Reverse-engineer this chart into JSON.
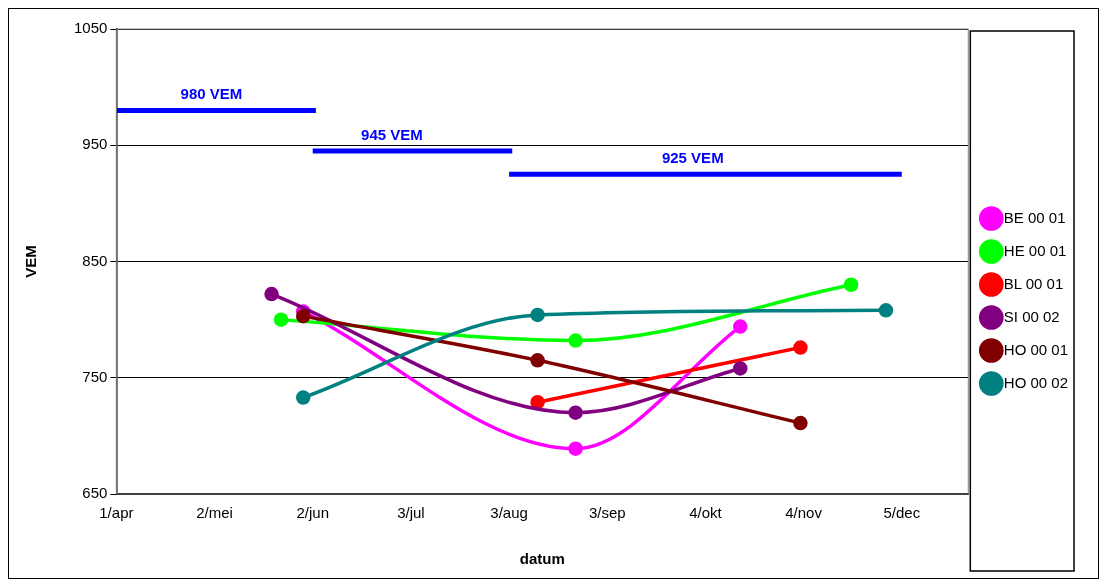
{
  "chart_data": {
    "type": "line",
    "xlabel": "datum",
    "ylabel": "VEM",
    "xlim": [
      "--04-01",
      "--12-26"
    ],
    "xticks": [
      {
        "value": "--04-01",
        "label": "1/apr"
      },
      {
        "value": "--05-02",
        "label": "2/mei"
      },
      {
        "value": "--06-02",
        "label": "2/jun"
      },
      {
        "value": "--07-03",
        "label": "3/jul"
      },
      {
        "value": "--08-03",
        "label": "3/aug"
      },
      {
        "value": "--09-03",
        "label": "3/sep"
      },
      {
        "value": "--10-04",
        "label": "4/okt"
      },
      {
        "value": "--11-04",
        "label": "4/nov"
      },
      {
        "value": "--12-05",
        "label": "5/dec"
      }
    ],
    "ylim": [
      650,
      1050
    ],
    "yticks": [
      650,
      750,
      850,
      950,
      1050
    ],
    "grid": "y",
    "legend": "right",
    "marker": "circle",
    "line_style": "solid",
    "series": [
      {
        "name": "BE 00 01",
        "color": "#ff00ff",
        "x": [
          "--05-30",
          "--08-24",
          "--10-15"
        ],
        "values": [
          807,
          689,
          794
        ]
      },
      {
        "name": "HE 00 01",
        "color": "#00ff00",
        "x": [
          "--05-23",
          "--08-24",
          "--11-19"
        ],
        "values": [
          800,
          782,
          830
        ]
      },
      {
        "name": "BL 00 01",
        "color": "#ff0000",
        "x": [
          "--08-12",
          "--11-03"
        ],
        "values": [
          729,
          776
        ]
      },
      {
        "name": "SI 00 02",
        "color": "#800080",
        "x": [
          "--05-20",
          "--08-24",
          "--10-15"
        ],
        "values": [
          822,
          720,
          758
        ]
      },
      {
        "name": "HO 00 01",
        "color": "#800000",
        "x": [
          "--05-30",
          "--08-12",
          "--11-03"
        ],
        "values": [
          803,
          765,
          711
        ]
      },
      {
        "name": "HO 00 02",
        "color": "#008080",
        "x": [
          "--05-30",
          "--08-12",
          "--11-30"
        ],
        "values": [
          733,
          804,
          808
        ]
      },
      {
        "color": "#0000ff",
        "marker": "none",
        "x": [
          "--04-01",
          "--06-03"
        ],
        "values": [
          980,
          980
        ]
      },
      {
        "color": "#0000ff",
        "marker": "none",
        "x": [
          "--06-02",
          "--08-04"
        ],
        "values": [
          945,
          945
        ]
      },
      {
        "color": "#0000ff",
        "marker": "none",
        "x": [
          "--08-03",
          "--12-05"
        ],
        "values": [
          925,
          925
        ]
      }
    ],
    "annotations": [
      {
        "text": "980 VEM",
        "x": "--05-01",
        "y": 980
      },
      {
        "text": "945 VEM",
        "x": "--06-27",
        "y": 945
      },
      {
        "text": "925 VEM",
        "x": "--09-30",
        "y": 925
      }
    ]
  }
}
